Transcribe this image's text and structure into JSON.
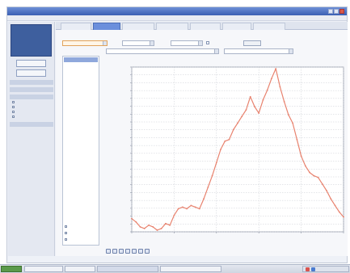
{
  "window": {
    "title": "",
    "menu": [
      "",
      "",
      "",
      ""
    ]
  },
  "sidebar": {
    "clock": {
      "line1": "",
      "time": "",
      "line3": "",
      "line4": ""
    },
    "buttons": [
      "",
      ""
    ],
    "sections": [
      {
        "label": "",
        "items": []
      },
      {
        "label": "",
        "items": []
      },
      {
        "label": "",
        "items": [
          "",
          "",
          "",
          ""
        ]
      },
      {
        "label": "",
        "items": []
      }
    ]
  },
  "tabs": [
    {
      "label": "",
      "active": false
    },
    {
      "label": "",
      "active": true
    },
    {
      "label": "",
      "active": false
    },
    {
      "label": "",
      "active": false
    },
    {
      "label": "",
      "active": false
    },
    {
      "label": "",
      "active": false
    },
    {
      "label": "",
      "active": false
    }
  ],
  "content": {
    "breadcrumb": "",
    "select1": "",
    "label2": "",
    "select2": "",
    "label3": "",
    "select3": "",
    "check_label": "",
    "button": "",
    "row2_select": "",
    "row2_select2": "",
    "list": {
      "header": "",
      "items": [
        "",
        "",
        ""
      ]
    }
  },
  "colors": {
    "series": "#e8836f",
    "grid": "#c9ccd3",
    "plot_bg": "#ffffff",
    "accent": "#6b8fdc"
  },
  "chart_data": {
    "type": "line",
    "title": "",
    "xlabel": "",
    "ylabel": "",
    "xlim": [
      0,
      100
    ],
    "ylim": [
      0,
      100
    ],
    "grid": true,
    "xticks": [
      "",
      "",
      "",
      "",
      "",
      ""
    ],
    "yticks": [
      "",
      "",
      "",
      "",
      "",
      "",
      "",
      "",
      "",
      "",
      "",
      "",
      "",
      "",
      "",
      "",
      "",
      "",
      "",
      "",
      "",
      ""
    ],
    "series": [
      {
        "name": "",
        "x": [
          0,
          2,
          4,
          6,
          8,
          10,
          12,
          14,
          16,
          18,
          20,
          22,
          24,
          26,
          28,
          30,
          32,
          34,
          36,
          38,
          40,
          42,
          44,
          46,
          48,
          50,
          52,
          54,
          56,
          58,
          60,
          62,
          64,
          66,
          68,
          70,
          72,
          74,
          76,
          78,
          80,
          82,
          84,
          86,
          88,
          90,
          92,
          94,
          96,
          98,
          100
        ],
        "y": [
          8,
          6,
          3,
          2,
          4,
          3,
          1,
          2,
          5,
          4,
          10,
          14,
          15,
          14,
          16,
          15,
          14,
          20,
          27,
          34,
          42,
          50,
          55,
          56,
          62,
          66,
          70,
          74,
          82,
          76,
          72,
          80,
          86,
          93,
          99,
          88,
          79,
          71,
          66,
          56,
          46,
          40,
          36,
          34,
          33,
          29,
          25,
          20,
          16,
          12,
          9
        ]
      }
    ]
  },
  "toolbar": {
    "icons": [
      "zoom-in-icon",
      "zoom-out-icon",
      "pan-icon",
      "print-icon",
      "save-icon",
      "copy-icon",
      "export-icon"
    ]
  },
  "taskbar": {
    "start_label": "",
    "tasks": [
      "",
      "",
      "",
      ""
    ],
    "time": ""
  }
}
